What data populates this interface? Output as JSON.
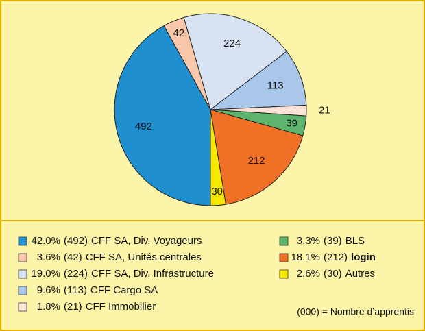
{
  "chart_data": {
    "type": "pie",
    "categories": [
      "CFF SA, Div. Voyageurs",
      "CFF SA, Unités centrales",
      "CFF SA, Div. Infrastructure",
      "CFF Cargo SA",
      "CFF Immobilier",
      "BLS",
      "login",
      "Autres"
    ],
    "values": [
      492,
      42,
      224,
      113,
      21,
      39,
      212,
      30
    ],
    "colors": [
      "#1f8fd0",
      "#f8c7a9",
      "#d7e2f3",
      "#a9c7e9",
      "#fde3d8",
      "#5db46c",
      "#f07125",
      "#f6e900"
    ],
    "percent_labels": [
      "42.0%",
      "3.6%",
      "19.0%",
      "9.6%",
      "1.8%",
      "3.3%",
      "18.1%",
      "2.6%"
    ],
    "count_labels": [
      "(492)",
      "(42)",
      "(224)",
      "(113)",
      "(21)",
      "(39)",
      "(212)",
      "(30)"
    ],
    "emphasis": [
      false,
      false,
      false,
      false,
      false,
      false,
      true,
      false
    ],
    "note": "(000) = Nombre d’apprentis"
  }
}
